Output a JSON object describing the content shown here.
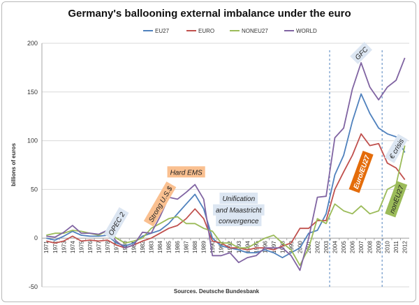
{
  "chart_data": {
    "type": "line",
    "title": "Germany's ballooning external imbalance under the euro",
    "ylabel": "billions of euros",
    "xlabel": "",
    "source": "Sources. Deutsche Bundesbank",
    "ylim": [
      -50,
      200
    ],
    "yticks": [
      -50,
      0,
      50,
      100,
      150,
      200
    ],
    "legend_position": "top",
    "grid": true,
    "x": [
      "1971",
      "1972",
      "1973",
      "1974",
      "1975",
      "1976",
      "1977",
      "1978",
      "1979",
      "1980",
      "1981",
      "1982",
      "1983",
      "1984",
      "1985",
      "1986",
      "1987",
      "1988",
      "1989",
      "1990",
      "1991",
      "1992",
      "1993",
      "1994",
      "1995",
      "1996",
      "1997",
      "1998",
      "1999",
      "2000",
      "2001",
      "2002",
      "2003",
      "2004",
      "2005",
      "2006",
      "2007",
      "2008",
      "2009",
      "2010",
      "2011",
      "2012"
    ],
    "series": [
      {
        "name": "EU27",
        "color": "#4F81BD",
        "values": [
          0,
          -2,
          2,
          7,
          3,
          2,
          2,
          3,
          -5,
          -8,
          -5,
          2,
          5,
          8,
          15,
          25,
          35,
          45,
          30,
          0,
          -8,
          -10,
          -12,
          -15,
          -15,
          -12,
          -15,
          -20,
          -15,
          -10,
          5,
          8,
          25,
          65,
          85,
          120,
          148,
          128,
          113,
          107,
          104,
          88
        ]
      },
      {
        "name": "EURO",
        "color": "#C0504D",
        "values": [
          -3,
          -5,
          -3,
          2,
          -3,
          -2,
          -3,
          -2,
          -7,
          -10,
          -7,
          -3,
          0,
          5,
          10,
          13,
          20,
          30,
          20,
          -3,
          -5,
          -10,
          -10,
          -12,
          -10,
          -10,
          -12,
          -8,
          -5,
          10,
          10,
          18,
          18,
          50,
          68,
          85,
          107,
          95,
          97,
          77,
          72,
          60
        ]
      },
      {
        "name": "NONEU27",
        "color": "#9BBB59",
        "values": [
          3,
          5,
          5,
          8,
          7,
          5,
          3,
          8,
          0,
          -5,
          -3,
          0,
          10,
          15,
          20,
          22,
          15,
          15,
          10,
          7,
          -5,
          -5,
          -10,
          -10,
          -5,
          0,
          3,
          -5,
          -12,
          -28,
          -10,
          20,
          15,
          35,
          28,
          25,
          33,
          25,
          28,
          50,
          55,
          95
        ]
      },
      {
        "name": "WORLD",
        "color": "#8064A2",
        "values": [
          2,
          1,
          6,
          13,
          5,
          5,
          4,
          8,
          -3,
          -10,
          -7,
          6,
          5,
          22,
          42,
          40,
          47,
          55,
          40,
          -18,
          -18,
          -15,
          -25,
          -20,
          -18,
          -10,
          -10,
          -10,
          -18,
          -33,
          0,
          42,
          43,
          103,
          113,
          153,
          180,
          155,
          142,
          155,
          162,
          185
        ]
      }
    ],
    "vlines": [
      "2003",
      "2009"
    ],
    "annotations": [
      {
        "text": "OPEC 2",
        "color": "#DCE6F2",
        "rotate": -60,
        "x": "1979",
        "y": 15
      },
      {
        "text": "Strong U.S.$",
        "color": "#FAC090",
        "rotate": -60,
        "x": "1984",
        "y": 35
      },
      {
        "text": "Hard EMS",
        "color": "#FAC090",
        "rotate": 0,
        "x": "1987",
        "y": 68
      },
      {
        "text": "Unification",
        "color": "#DCE6F2",
        "rotate": 0,
        "x": "1993",
        "y": 41
      },
      {
        "text": "and Maastricht",
        "color": "#DCE6F2",
        "rotate": 0,
        "x": "1993",
        "y": 29
      },
      {
        "text": "convergence",
        "color": "#DCE6F2",
        "rotate": 0,
        "x": "1993",
        "y": 18
      },
      {
        "text": "GFC",
        "color": "#DCE6F2",
        "rotate": -45,
        "x": "2007",
        "y": 190
      },
      {
        "text": "€ crisis",
        "color": "#DCE6F2",
        "rotate": -60,
        "x": "2011",
        "y": 92
      },
      {
        "text": "Euro/EU27",
        "color": "#E46C0A",
        "rotate": -70,
        "x": "2007",
        "y": 68,
        "white": true
      },
      {
        "text": "nonEU27",
        "color": "#9BBB59",
        "rotate": -70,
        "x": "2011",
        "y": 40
      }
    ]
  }
}
